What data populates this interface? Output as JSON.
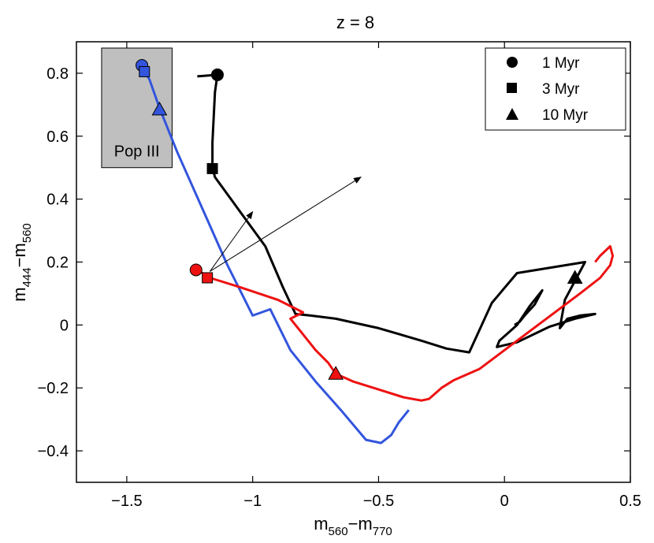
{
  "chart_data": {
    "type": "line",
    "title": "z = 8",
    "xlabel": {
      "main": "m",
      "sub1": "560",
      "dash": "−m",
      "sub2": "770"
    },
    "ylabel": {
      "main": "m",
      "sub1": "444",
      "dash": "−m",
      "sub2": "560"
    },
    "xlim": [
      -1.7,
      0.5
    ],
    "ylim": [
      -0.5,
      0.9
    ],
    "x_ticks": [
      {
        "value": -1.5,
        "label": "−1.5"
      },
      {
        "value": -1.0,
        "label": "−1"
      },
      {
        "value": -0.5,
        "label": "−0.5"
      },
      {
        "value": 0,
        "label": "0"
      },
      {
        "value": 0.5,
        "label": "0.5"
      }
    ],
    "y_ticks": [
      {
        "value": -0.4,
        "label": "−0.4"
      },
      {
        "value": -0.2,
        "label": "−0.2"
      },
      {
        "value": 0,
        "label": "0"
      },
      {
        "value": 0.2,
        "label": "0.2"
      },
      {
        "value": 0.4,
        "label": "0.4"
      },
      {
        "value": 0.6,
        "label": "0.6"
      },
      {
        "value": 0.8,
        "label": "0.8"
      }
    ],
    "grid": false,
    "legend_position": "top-right",
    "legend": [
      {
        "label": "1 Myr",
        "marker": "circle"
      },
      {
        "label": "3 Myr",
        "marker": "square"
      },
      {
        "label": "10 Myr",
        "marker": "triangle"
      }
    ],
    "region": {
      "label": "Pop III",
      "x": [
        -1.6,
        -1.32
      ],
      "y": [
        0.5,
        0.88
      ],
      "fill": "#bfbfbf"
    },
    "series": [
      {
        "color": "#000000",
        "points": [
          [
            -1.22,
            0.79
          ],
          [
            -1.14,
            0.795
          ],
          [
            -1.15,
            0.74
          ],
          [
            -1.155,
            0.66
          ],
          [
            -1.16,
            0.58
          ],
          [
            -1.16,
            0.5
          ],
          [
            -1.15,
            0.47
          ],
          [
            -1.05,
            0.36
          ],
          [
            -0.95,
            0.25
          ],
          [
            -0.88,
            0.12
          ],
          [
            -0.83,
            0.035
          ],
          [
            -0.77,
            0.03
          ],
          [
            -0.67,
            0.02
          ],
          [
            -0.5,
            -0.01
          ],
          [
            -0.33,
            -0.05
          ],
          [
            -0.23,
            -0.075
          ],
          [
            -0.14,
            -0.087
          ],
          [
            -0.05,
            0.07
          ],
          [
            0.05,
            0.165
          ],
          [
            0.32,
            0.2
          ],
          [
            0.24,
            0.08
          ],
          [
            0.22,
            -0.01
          ],
          [
            0.25,
            0.02
          ],
          [
            0.3,
            0.03
          ],
          [
            0.36,
            0.035
          ],
          [
            0.28,
            0.02
          ],
          [
            0.18,
            -0.005
          ],
          [
            0.05,
            -0.055
          ],
          [
            -0.03,
            -0.07
          ],
          [
            -0.02,
            -0.05
          ],
          [
            0.05,
            0.0
          ],
          [
            0.1,
            0.06
          ],
          [
            0.15,
            0.11
          ],
          [
            0.12,
            0.065
          ],
          [
            0.08,
            0.03
          ],
          [
            0.06,
            0.01
          ],
          [
            0.04,
            0.0
          ]
        ],
        "markers": [
          {
            "shape": "circle",
            "x": -1.14,
            "y": 0.795
          },
          {
            "shape": "square",
            "x": -1.16,
            "y": 0.497
          },
          {
            "shape": "triangle",
            "x": 0.28,
            "y": 0.15
          }
        ]
      },
      {
        "color": "#3355dd",
        "points": [
          [
            -1.44,
            0.82
          ],
          [
            -1.41,
            0.78
          ],
          [
            -1.37,
            0.69
          ],
          [
            -1.3,
            0.55
          ],
          [
            -1.2,
            0.37
          ],
          [
            -1.1,
            0.19
          ],
          [
            -1.0,
            0.03
          ],
          [
            -0.93,
            0.05
          ],
          [
            -0.85,
            -0.08
          ],
          [
            -0.75,
            -0.18
          ],
          [
            -0.65,
            -0.27
          ],
          [
            -0.55,
            -0.365
          ],
          [
            -0.52,
            -0.37
          ],
          [
            -0.49,
            -0.375
          ],
          [
            -0.45,
            -0.35
          ],
          [
            -0.42,
            -0.31
          ],
          [
            -0.38,
            -0.27
          ]
        ],
        "markers": [
          {
            "shape": "circle",
            "x": -1.44,
            "y": 0.825
          },
          {
            "shape": "square",
            "x": -1.43,
            "y": 0.805
          },
          {
            "shape": "triangle",
            "x": -1.37,
            "y": 0.685
          }
        ]
      },
      {
        "color": "#ee1111",
        "points": [
          [
            -1.22,
            0.175
          ],
          [
            -1.17,
            0.15
          ],
          [
            -1.05,
            0.12
          ],
          [
            -0.9,
            0.08
          ],
          [
            -0.85,
            0.06
          ],
          [
            -0.8,
            0.04
          ],
          [
            -0.85,
            0.02
          ],
          [
            -0.8,
            -0.03
          ],
          [
            -0.75,
            -0.08
          ],
          [
            -0.7,
            -0.12
          ],
          [
            -0.67,
            -0.155
          ],
          [
            -0.6,
            -0.18
          ],
          [
            -0.5,
            -0.205
          ],
          [
            -0.4,
            -0.23
          ],
          [
            -0.33,
            -0.24
          ],
          [
            -0.3,
            -0.235
          ],
          [
            -0.25,
            -0.2
          ],
          [
            -0.2,
            -0.175
          ],
          [
            -0.1,
            -0.14
          ],
          [
            0.0,
            -0.08
          ],
          [
            0.1,
            -0.02
          ],
          [
            0.2,
            0.04
          ],
          [
            0.3,
            0.1
          ],
          [
            0.38,
            0.15
          ],
          [
            0.42,
            0.19
          ],
          [
            0.43,
            0.22
          ],
          [
            0.42,
            0.25
          ],
          [
            0.38,
            0.22
          ],
          [
            0.36,
            0.2
          ]
        ],
        "markers": [
          {
            "shape": "circle",
            "x": -1.225,
            "y": 0.175
          },
          {
            "shape": "square",
            "x": -1.18,
            "y": 0.15
          },
          {
            "shape": "triangle",
            "x": -0.67,
            "y": -0.155
          }
        ]
      }
    ],
    "arrows": [
      {
        "from": [
          -1.17,
          0.17
        ],
        "to": [
          -1.0,
          0.36
        ]
      },
      {
        "from": [
          -1.17,
          0.17
        ],
        "to": [
          -0.57,
          0.47
        ]
      }
    ]
  }
}
